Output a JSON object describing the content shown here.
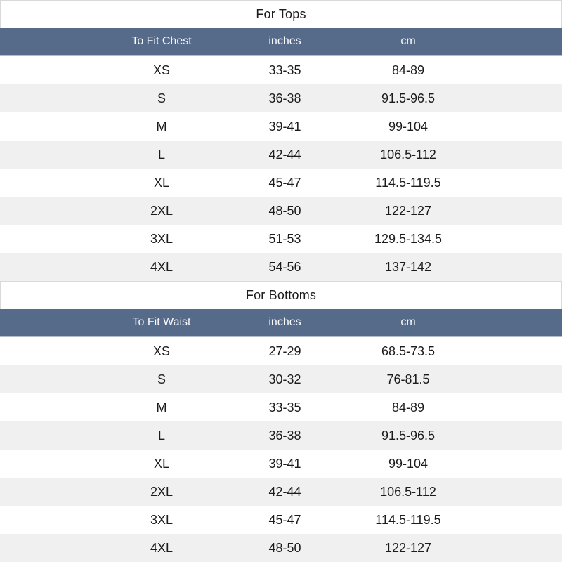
{
  "colors": {
    "header_bg": "#566a8a",
    "header_text": "#fafbfd",
    "header_edge": "#b3bcca",
    "alt_row_bg": "#f0f0f0",
    "title_border": "#d9d9d9",
    "text": "#1c1c1c"
  },
  "tables": [
    {
      "title": "For Tops",
      "columns": [
        "To Fit Chest",
        "inches",
        "cm"
      ],
      "rows": [
        [
          "XS",
          "33-35",
          "84-89"
        ],
        [
          "S",
          "36-38",
          "91.5-96.5"
        ],
        [
          "M",
          "39-41",
          "99-104"
        ],
        [
          "L",
          "42-44",
          "106.5-112"
        ],
        [
          "XL",
          "45-47",
          "114.5-119.5"
        ],
        [
          "2XL",
          "48-50",
          "122-127"
        ],
        [
          "3XL",
          "51-53",
          "129.5-134.5"
        ],
        [
          "4XL",
          "54-56",
          "137-142"
        ]
      ]
    },
    {
      "title": "For Bottoms",
      "columns": [
        "To Fit Waist",
        "inches",
        "cm"
      ],
      "rows": [
        [
          "XS",
          "27-29",
          "68.5-73.5"
        ],
        [
          "S",
          "30-32",
          "76-81.5"
        ],
        [
          "M",
          "33-35",
          "84-89"
        ],
        [
          "L",
          "36-38",
          "91.5-96.5"
        ],
        [
          "XL",
          "39-41",
          "99-104"
        ],
        [
          "2XL",
          "42-44",
          "106.5-112"
        ],
        [
          "3XL",
          "45-47",
          "114.5-119.5"
        ],
        [
          "4XL",
          "48-50",
          "122-127"
        ]
      ]
    }
  ]
}
